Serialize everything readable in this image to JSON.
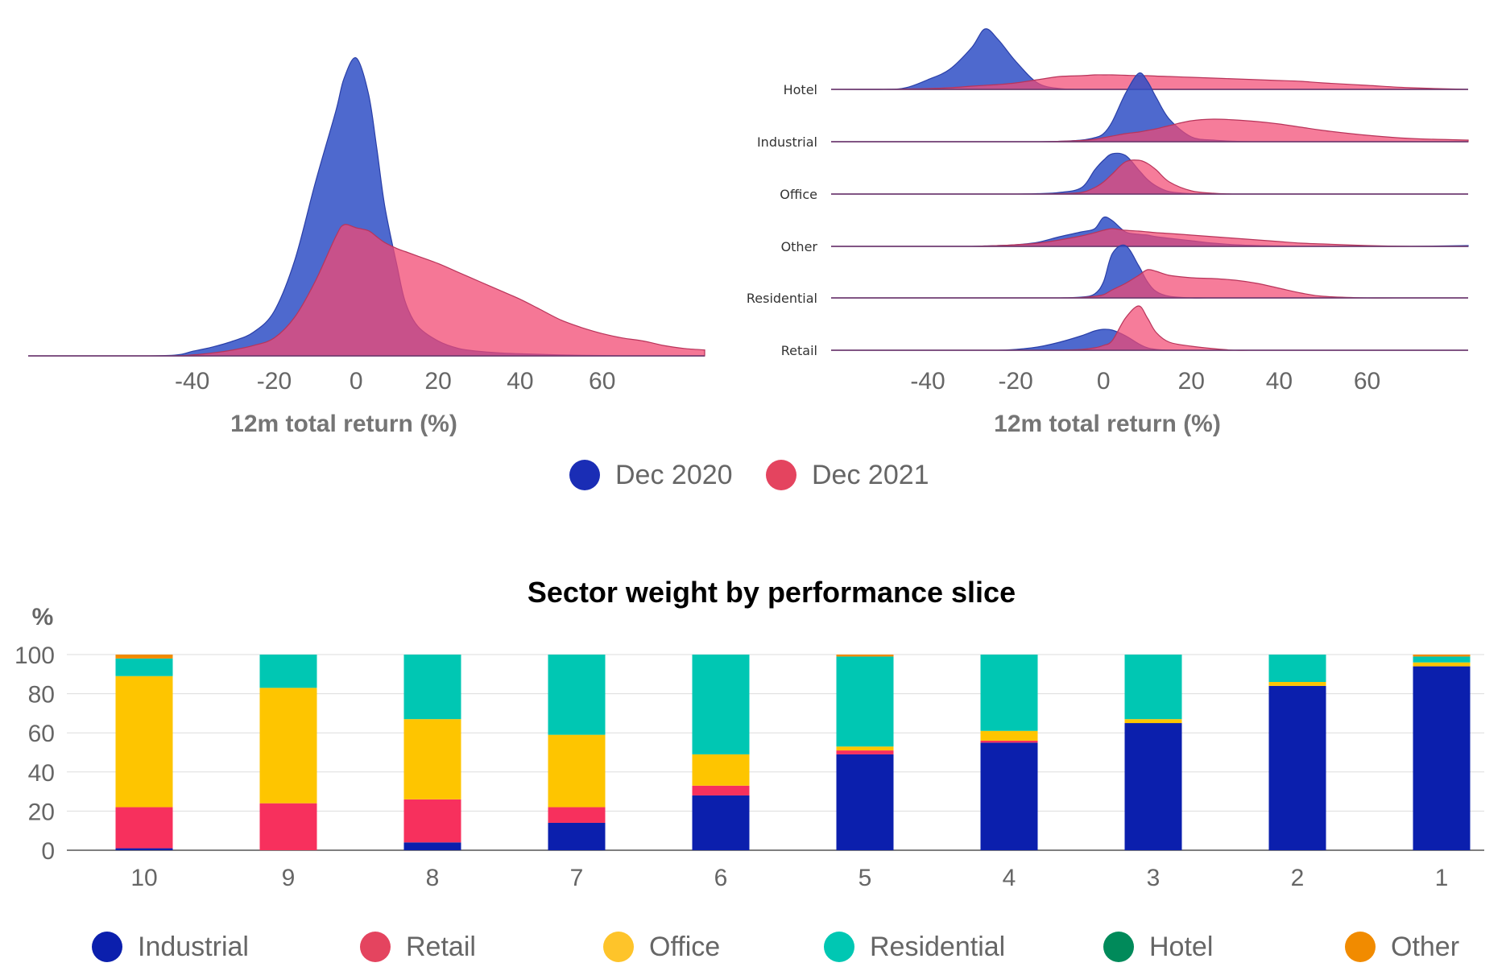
{
  "colors": {
    "dec2020": "#2f4fc6",
    "dec2021": "#f24a73",
    "sectors": {
      "Industrial": "#0b1fad",
      "Retail": "#f7305d",
      "Office": "#fec500",
      "Residential": "#00c7b3",
      "Hotel": "#008a5a",
      "Other": "#f18b00"
    }
  },
  "chart_data": [
    {
      "type": "area",
      "title": "",
      "xlabel": "12m total return (%)",
      "ylabel": "",
      "xlim": [
        -80,
        85
      ],
      "xticks": [
        "-40",
        "-20",
        "0",
        "20",
        "40",
        "60"
      ],
      "x": [
        -80,
        -60,
        -45,
        -40,
        -35,
        -30,
        -25,
        -20,
        -15,
        -10,
        -5,
        -3,
        0,
        3,
        5,
        7,
        10,
        12,
        15,
        20,
        25,
        30,
        35,
        40,
        45,
        50,
        55,
        60,
        65,
        70,
        75,
        80,
        85
      ],
      "series": [
        {
          "name": "Dec 2020",
          "values": [
            0,
            0,
            0.2,
            1.5,
            3,
            5,
            8,
            15,
            32,
            58,
            82,
            93,
            100,
            88,
            70,
            50,
            30,
            18,
            10,
            5,
            2.5,
            1.5,
            1,
            0.7,
            0.5,
            0.3,
            0.2,
            0.1,
            0,
            0,
            0,
            0,
            0
          ]
        },
        {
          "name": "Dec 2021",
          "values": [
            0,
            0,
            0,
            0.3,
            1,
            2,
            3.5,
            6,
            13,
            25,
            40,
            44,
            43,
            42,
            40,
            38,
            36,
            35,
            33.5,
            31,
            28,
            25,
            22,
            19,
            15.5,
            12,
            9.5,
            7.5,
            6,
            5,
            3.5,
            2.5,
            2
          ]
        }
      ]
    },
    {
      "type": "area",
      "title": "",
      "xlabel": "12m total return (%)",
      "ylabel": "",
      "xlim": [
        -62,
        83
      ],
      "xticks": [
        "-40",
        "-20",
        "0",
        "20",
        "40",
        "60"
      ],
      "categories": [
        "Hotel",
        "Industrial",
        "Office",
        "Other",
        "Residential",
        "Retail"
      ],
      "x": [
        -62,
        -50,
        -45,
        -40,
        -35,
        -30,
        -27,
        -24,
        -20,
        -15,
        -10,
        -5,
        -2,
        0,
        2,
        5,
        8,
        10,
        12,
        15,
        20,
        25,
        30,
        35,
        40,
        45,
        50,
        60,
        70,
        83
      ],
      "series": [
        {
          "name": "Dec 2020",
          "group": "Hotel",
          "values": [
            0,
            0,
            2,
            12,
            25,
            52,
            75,
            62,
            35,
            8,
            1,
            0,
            0,
            0,
            0,
            0,
            0,
            0,
            0,
            0,
            0,
            0,
            0,
            0,
            0,
            0,
            0,
            0,
            0,
            0
          ]
        },
        {
          "name": "Dec 2021",
          "group": "Hotel",
          "values": [
            0,
            0,
            0.5,
            1,
            2,
            4,
            5,
            6,
            8,
            12,
            16,
            17,
            18,
            18,
            18,
            17.5,
            17,
            17,
            16.5,
            16,
            15,
            14,
            13,
            12,
            11,
            10,
            8,
            5,
            2,
            0
          ]
        },
        {
          "name": "Dec 2020",
          "group": "Industrial",
          "values": [
            0,
            0,
            0,
            0,
            0,
            0,
            0,
            0,
            0,
            0,
            0.5,
            2,
            5,
            10,
            25,
            60,
            85,
            75,
            55,
            28,
            6,
            2,
            0.5,
            0,
            0,
            0,
            0,
            0,
            0,
            0
          ]
        },
        {
          "name": "Dec 2021",
          "group": "Industrial",
          "values": [
            0,
            0,
            0,
            0,
            0,
            0,
            0,
            0,
            0,
            0,
            0.5,
            1.5,
            3,
            5,
            7,
            10,
            12,
            14,
            16,
            20,
            26,
            28,
            27,
            25,
            22,
            18,
            14,
            8,
            4,
            2
          ]
        },
        {
          "name": "Dec 2020",
          "group": "Office",
          "values": [
            0,
            0,
            0,
            0,
            0,
            0,
            0,
            0,
            0,
            0.5,
            2,
            8,
            30,
            42,
            50,
            48,
            30,
            18,
            10,
            3,
            0.5,
            0,
            0,
            0,
            0,
            0,
            0,
            0,
            0,
            0
          ]
        },
        {
          "name": "Dec 2021",
          "group": "Office",
          "values": [
            0,
            0,
            0,
            0,
            0,
            0,
            0,
            0,
            0,
            0,
            0.5,
            2,
            8,
            15,
            25,
            40,
            42,
            38,
            30,
            15,
            4,
            1,
            0,
            0,
            0,
            0,
            0,
            0,
            0,
            0
          ]
        },
        {
          "name": "Dec 2020",
          "group": "Other",
          "values": [
            0,
            0,
            0,
            0,
            0,
            0,
            0.5,
            1,
            2,
            5,
            12,
            18,
            22,
            36,
            32,
            18,
            15,
            14,
            12,
            10,
            7,
            4,
            2,
            1,
            0.5,
            0,
            0,
            0,
            0,
            1
          ]
        },
        {
          "name": "Dec 2021",
          "group": "Other",
          "values": [
            0,
            0,
            0,
            0,
            0,
            0,
            0.5,
            1,
            2,
            4,
            8,
            13,
            17,
            20,
            22,
            20,
            19,
            18,
            17,
            16,
            14,
            12,
            10,
            8,
            6,
            4,
            3,
            1,
            0,
            0
          ]
        },
        {
          "name": "Dec 2020",
          "group": "Residential",
          "values": [
            0,
            0,
            0,
            0,
            0,
            0,
            0,
            0,
            0,
            0,
            0,
            1,
            5,
            20,
            55,
            65,
            40,
            20,
            8,
            2,
            0,
            0,
            0,
            0,
            0,
            0,
            0,
            0,
            0,
            0
          ]
        },
        {
          "name": "Dec 2021",
          "group": "Residential",
          "values": [
            0,
            0,
            0,
            0,
            0,
            0,
            0,
            0,
            0,
            0,
            0,
            0.5,
            2,
            4,
            10,
            18,
            28,
            35,
            33,
            28,
            25,
            24,
            22,
            18,
            12,
            6,
            2,
            0,
            0,
            0
          ]
        },
        {
          "name": "Dec 2020",
          "group": "Retail",
          "values": [
            0,
            0,
            0,
            0,
            0,
            0,
            0,
            0,
            1,
            4,
            10,
            18,
            24,
            26,
            25,
            18,
            8,
            3,
            1,
            0,
            0,
            0,
            0,
            0,
            0,
            0,
            0,
            0,
            0,
            0
          ]
        },
        {
          "name": "Dec 2021",
          "group": "Retail",
          "values": [
            0,
            0,
            0,
            0,
            0,
            0,
            0,
            0,
            0,
            0,
            0,
            1,
            3,
            6,
            12,
            40,
            55,
            40,
            22,
            10,
            5,
            2,
            0,
            0,
            0,
            0,
            0,
            0,
            0,
            0
          ]
        }
      ]
    },
    {
      "type": "bar",
      "stacked": true,
      "title": "Sector weight by performance slice",
      "xlabel": "",
      "ylabel": "%",
      "ylim": [
        0,
        100
      ],
      "yticks": [
        "0",
        "20",
        "40",
        "60",
        "80",
        "100"
      ],
      "categories": [
        "10",
        "9",
        "8",
        "7",
        "6",
        "5",
        "4",
        "3",
        "2",
        "1"
      ],
      "series": [
        {
          "name": "Industrial",
          "values": [
            1,
            0,
            4,
            14,
            28,
            49,
            55,
            65,
            84,
            94
          ]
        },
        {
          "name": "Retail",
          "values": [
            21,
            24,
            22,
            8,
            5,
            2,
            1,
            0,
            0,
            0
          ]
        },
        {
          "name": "Office",
          "values": [
            67,
            59,
            41,
            37,
            16,
            2,
            5,
            2,
            2,
            2
          ]
        },
        {
          "name": "Residential",
          "values": [
            9,
            17,
            33,
            41,
            51,
            46,
            39,
            33,
            14,
            3
          ]
        },
        {
          "name": "Hotel",
          "values": [
            0,
            0,
            0,
            0,
            0,
            0,
            0,
            0,
            0,
            0
          ]
        },
        {
          "name": "Other",
          "values": [
            2,
            0,
            0,
            0,
            0,
            1,
            0,
            0,
            0,
            1
          ]
        }
      ],
      "grid": true,
      "legend": "bottom"
    }
  ],
  "legends": {
    "top": [
      {
        "label": "Dec 2020",
        "color": "#1a2db5"
      },
      {
        "label": "Dec 2021",
        "color": "#e4445f"
      }
    ],
    "bottom": [
      {
        "label": "Industrial",
        "color": "#0b1fad"
      },
      {
        "label": "Retail",
        "color": "#e4445f"
      },
      {
        "label": "Office",
        "color": "#fec42a"
      },
      {
        "label": "Residential",
        "color": "#00c7b3"
      },
      {
        "label": "Hotel",
        "color": "#008a5a"
      },
      {
        "label": "Other",
        "color": "#f18b00"
      }
    ]
  }
}
